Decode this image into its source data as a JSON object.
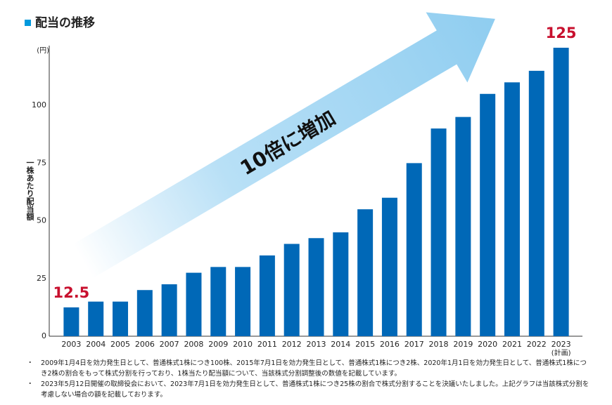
{
  "chart_data": {
    "type": "bar",
    "title": "配当の推移",
    "y_label": "一株あたり配当額",
    "y_unit": "(円)",
    "categories": [
      "2003",
      "2004",
      "2005",
      "2006",
      "2007",
      "2008",
      "2009",
      "2010",
      "2011",
      "2012",
      "2013",
      "2014",
      "2015",
      "2016",
      "2017",
      "2018",
      "2019",
      "2020",
      "2021",
      "2022",
      "2023"
    ],
    "values": [
      12.5,
      15,
      15,
      20,
      22.5,
      27.5,
      30,
      30,
      35,
      40,
      42.5,
      45,
      55,
      60,
      75,
      90,
      95,
      105,
      110,
      115,
      125
    ],
    "value_labels": [
      "12.5",
      null,
      null,
      null,
      null,
      null,
      null,
      null,
      null,
      null,
      null,
      null,
      null,
      null,
      null,
      null,
      null,
      null,
      null,
      null,
      "125"
    ],
    "color": "#0068b7",
    "label_color": "#c8102e",
    "ylim": [
      0,
      125
    ],
    "yticks": [
      0,
      25,
      50,
      75,
      100
    ],
    "grid": false,
    "annotations": [
      "10倍に増加",
      "(計画)"
    ],
    "footnotes": [
      "2009年1月4日を効力発生日として、普通株式1株につき100株、2015年7月1日を効力発生日として、普通株式1株につき2株、2020年1月1日を効力発生日として、普通株式1株につき2株の割合をもって株式分割を行っており、1株当たり配当額について、当該株式分割調整後の数値を記載しています。",
      "2023年5月12日開催の取締役会において、2023年7月1日を効力発生日として、普通株式1株につき25株の割合で株式分割することを決議いたしました。上記グラフは当該株式分割を考慮しない場合の額を記載しております。"
    ]
  }
}
